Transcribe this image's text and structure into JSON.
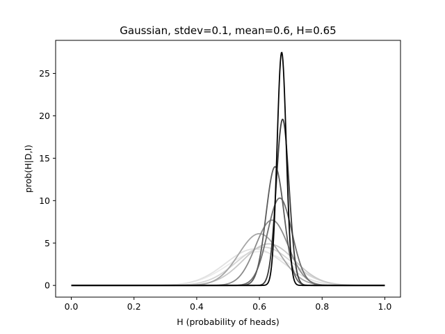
{
  "chart_data": {
    "type": "line",
    "title": "Gaussian, stdev=0.1, mean=0.6, H=0.65",
    "xlabel": "H (probability of heads)",
    "ylabel": "prob(H|D,I)",
    "xlim": [
      -0.05,
      1.05
    ],
    "ylim": [
      -1.38,
      28.9
    ],
    "x_ticks": [
      0.0,
      0.2,
      0.4,
      0.6,
      0.8,
      1.0
    ],
    "x_tick_labels": [
      "0.0",
      "0.2",
      "0.4",
      "0.6",
      "0.8",
      "1.0"
    ],
    "y_ticks": [
      0,
      5,
      10,
      15,
      20,
      25
    ],
    "y_tick_labels": [
      "0",
      "5",
      "10",
      "15",
      "20",
      "25"
    ],
    "grid": false,
    "x_range": [
      0.0,
      1.0
    ],
    "series": [
      {
        "mu": 0.6,
        "sigma": 0.1,
        "peak": 3.99,
        "color": "#ebebeb"
      },
      {
        "mu": 0.585,
        "sigma": 0.093,
        "peak": 4.3,
        "color": "#e1e1e1"
      },
      {
        "mu": 0.615,
        "sigma": 0.089,
        "peak": 4.5,
        "color": "#d5d5d5"
      },
      {
        "mu": 0.63,
        "sigma": 0.082,
        "peak": 4.9,
        "color": "#c8c8c8"
      },
      {
        "mu": 0.6,
        "sigma": 0.066,
        "peak": 6.1,
        "color": "#a6a6a6"
      },
      {
        "mu": 0.64,
        "sigma": 0.052,
        "peak": 7.7,
        "color": "#8a8a8a"
      },
      {
        "mu": 0.665,
        "sigma": 0.039,
        "peak": 10.3,
        "color": "#6e6e6e"
      },
      {
        "mu": 0.65,
        "sigma": 0.0285,
        "peak": 14.0,
        "color": "#5a5a5a"
      },
      {
        "mu": 0.674,
        "sigma": 0.0204,
        "peak": 19.6,
        "color": "#383838"
      },
      {
        "mu": 0.671,
        "sigma": 0.0145,
        "peak": 27.5,
        "color": "#000000"
      }
    ]
  }
}
